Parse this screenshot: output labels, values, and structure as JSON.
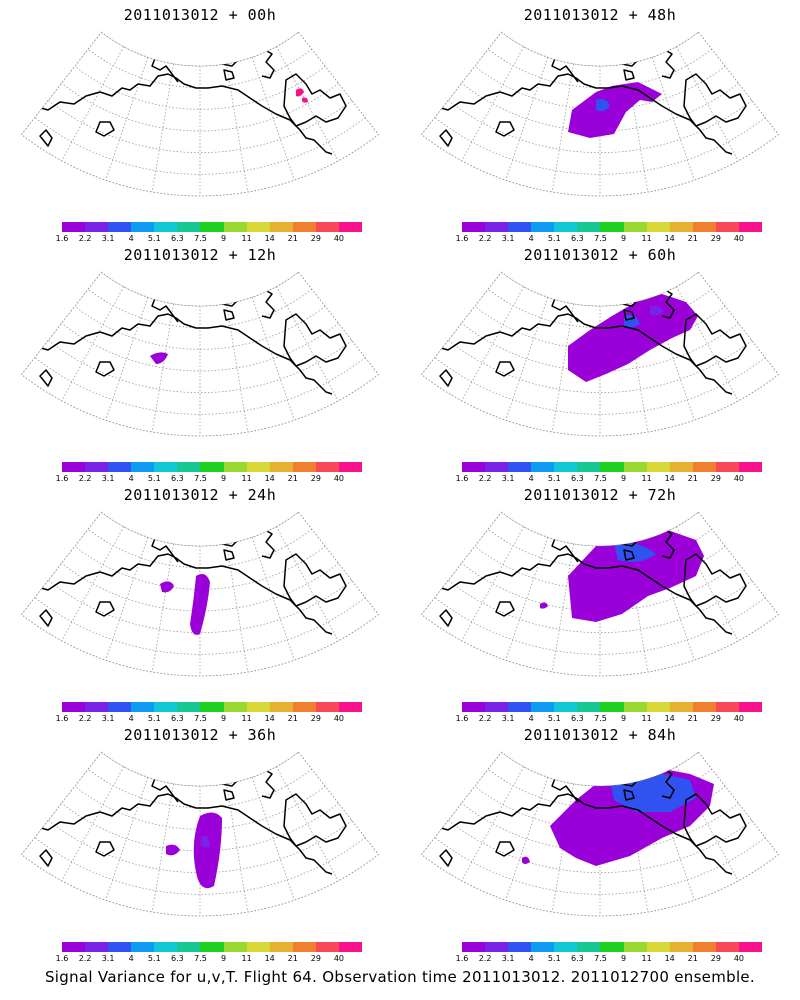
{
  "panels": [
    {
      "title": "2011013012 + 00h",
      "stage": 0
    },
    {
      "title": "2011013012 + 48h",
      "stage": 4
    },
    {
      "title": "2011013012 + 12h",
      "stage": 1
    },
    {
      "title": "2011013012 + 60h",
      "stage": 5
    },
    {
      "title": "2011013012 + 24h",
      "stage": 2
    },
    {
      "title": "2011013012 + 72h",
      "stage": 6
    },
    {
      "title": "2011013012 + 36h",
      "stage": 3
    },
    {
      "title": "2011013012 + 84h",
      "stage": 7
    }
  ],
  "colorbar": {
    "labels": [
      "1.6",
      "2.2",
      "3.1",
      "4",
      "5.1",
      "6.3",
      "7.5",
      "9",
      "11",
      "14",
      "21",
      "29",
      "40"
    ],
    "colors": [
      "#9a00d8",
      "#7a22e8",
      "#2f52f0",
      "#0e9cf0",
      "#10c8d8",
      "#18c894",
      "#20d020",
      "#98d830",
      "#d8d838",
      "#e8b030",
      "#f08030",
      "#f84858",
      "#f8108c"
    ]
  },
  "footer": "Signal Variance for u,v,T. Flight 64. Observation time 2011013012. 2011012700 ensemble."
}
